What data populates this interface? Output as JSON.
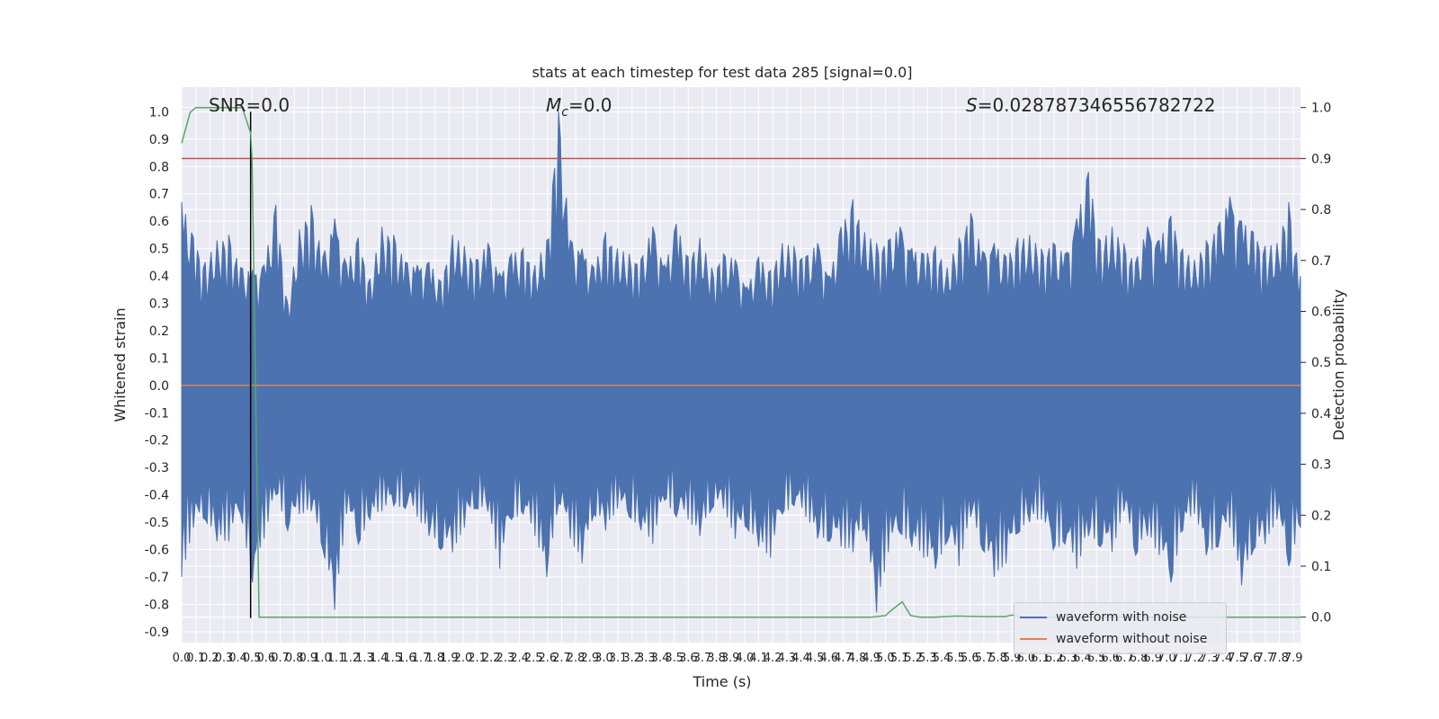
{
  "chart_data": {
    "type": "line",
    "title": "stats at each timestep for test data 285 [signal=0.0]",
    "xlabel": "Time (s)",
    "ylabel": "Whitened strain",
    "y2label": "Detection probability",
    "xlim": [
      0.0,
      7.95
    ],
    "ylim": [
      -0.94,
      1.09
    ],
    "y2lim": [
      -0.05,
      1.04
    ],
    "x_ticks": [
      0.0,
      0.1,
      0.2,
      0.3,
      0.4,
      0.5,
      0.6,
      0.7,
      0.8,
      0.9,
      1.0,
      1.1,
      1.2,
      1.3,
      1.4,
      1.5,
      1.6,
      1.7,
      1.8,
      1.9,
      2.0,
      2.1,
      2.2,
      2.3,
      2.4,
      2.5,
      2.6,
      2.7,
      2.8,
      2.9,
      3.0,
      3.1,
      3.2,
      3.3,
      3.4,
      3.5,
      3.6,
      3.7,
      3.8,
      3.9,
      4.0,
      4.1,
      4.2,
      4.3,
      4.4,
      4.5,
      4.6,
      4.7,
      4.8,
      4.9,
      5.0,
      5.1,
      5.2,
      5.3,
      5.4,
      5.5,
      5.6,
      5.7,
      5.8,
      5.9,
      6.0,
      6.1,
      6.2,
      6.3,
      6.4,
      6.5,
      6.6,
      6.7,
      6.8,
      6.9,
      7.0,
      7.1,
      7.2,
      7.3,
      7.4,
      7.5,
      7.6,
      7.7,
      7.8,
      7.9
    ],
    "y_ticks": [
      "1.0",
      "0.9",
      "0.8",
      "0.7",
      "0.6",
      "0.5",
      "0.4",
      "0.3",
      "0.2",
      "0.1",
      "0.0",
      "-0.1",
      "-0.2",
      "-0.3",
      "-0.4",
      "-0.5",
      "-0.6",
      "-0.7",
      "-0.8",
      "-0.9"
    ],
    "y2_ticks": [
      "1.0",
      "0.9",
      "0.8",
      "0.7",
      "0.6",
      "0.5",
      "0.4",
      "0.3",
      "0.2",
      "0.1",
      "0.0"
    ],
    "annotations": {
      "snr": "SNR=0.0",
      "mc": "M_c=0.0",
      "s": "S=0.028787346556782722"
    },
    "series": [
      {
        "name": "waveform with noise",
        "color": "#4c72b0",
        "envelope": {
          "x_start": 0.0,
          "x_end": 7.95,
          "max": [
            0.67,
            0.54,
            0.45,
            0.53,
            0.55,
            0.43,
            0.42,
            0.44,
            0.66,
            0.3,
            0.57,
            0.66,
            0.47,
            0.61,
            0.44,
            0.54,
            0.39,
            0.58,
            0.55,
            0.45,
            0.44,
            0.45,
            0.38,
            0.55,
            0.51,
            0.46,
            0.52,
            0.41,
            0.48,
            0.5,
            0.44,
            0.53,
            1.0,
            0.53,
            0.5,
            0.43,
            0.56,
            0.5,
            0.48,
            0.46,
            0.58,
            0.44,
            0.59,
            0.47,
            0.54,
            0.43,
            0.48,
            0.46,
            0.36,
            0.47,
            0.42,
            0.52,
            0.51,
            0.47,
            0.52,
            0.4,
            0.58,
            0.68,
            0.56,
            0.52,
            0.53,
            0.58,
            0.5,
            0.48,
            0.51,
            0.43,
            0.54,
            0.63,
            0.49,
            0.52,
            0.47,
            0.54,
            0.55,
            0.5,
            0.52,
            0.48,
            0.61,
            0.78,
            0.53,
            0.58,
            0.52,
            0.45,
            0.58,
            0.53,
            0.62,
            0.5,
            0.46,
            0.53,
            0.58,
            0.69,
            0.6,
            0.56,
            0.51,
            0.52,
            0.67,
            0.4
          ],
          "min": [
            -0.7,
            -0.52,
            -0.49,
            -0.57,
            -0.57,
            -0.47,
            -0.72,
            -0.56,
            -0.4,
            -0.53,
            -0.47,
            -0.46,
            -0.6,
            -0.82,
            -0.47,
            -0.58,
            -0.49,
            -0.46,
            -0.44,
            -0.45,
            -0.48,
            -0.55,
            -0.6,
            -0.61,
            -0.52,
            -0.45,
            -0.46,
            -0.67,
            -0.49,
            -0.47,
            -0.55,
            -0.7,
            -0.43,
            -0.56,
            -0.65,
            -0.47,
            -0.53,
            -0.45,
            -0.48,
            -0.53,
            -0.58,
            -0.42,
            -0.48,
            -0.49,
            -0.55,
            -0.45,
            -0.45,
            -0.56,
            -0.52,
            -0.59,
            -0.63,
            -0.47,
            -0.44,
            -0.48,
            -0.56,
            -0.57,
            -0.59,
            -0.61,
            -0.52,
            -0.83,
            -0.61,
            -0.54,
            -0.59,
            -0.63,
            -0.67,
            -0.57,
            -0.66,
            -0.48,
            -0.6,
            -0.7,
            -0.65,
            -0.54,
            -0.5,
            -0.49,
            -0.6,
            -0.58,
            -0.67,
            -0.55,
            -0.59,
            -0.61,
            -0.46,
            -0.62,
            -0.55,
            -0.62,
            -0.72,
            -0.53,
            -0.47,
            -0.62,
            -0.59,
            -0.52,
            -0.73,
            -0.6,
            -0.58,
            -0.49,
            -0.66,
            -0.52
          ]
        }
      },
      {
        "name": "waveform without noise",
        "color": "#dd8452",
        "x": [
          0.0,
          7.95
        ],
        "y": [
          0.0,
          0.0
        ]
      },
      {
        "axis": "right",
        "color": "#55a868",
        "x": [
          0.0,
          0.06,
          0.1,
          0.2,
          0.3,
          0.4,
          0.43,
          0.49,
          0.5,
          0.55,
          0.6,
          1.0,
          2.0,
          3.0,
          4.0,
          4.9,
          5.0,
          5.05,
          5.12,
          5.18,
          5.25,
          5.35,
          5.5,
          5.7,
          5.85,
          5.9,
          6.0,
          6.2,
          6.5,
          7.0,
          7.5,
          7.95
        ],
        "y": [
          0.93,
          0.99,
          1.0,
          1.0,
          1.0,
          1.0,
          1.0,
          0.95,
          0.9,
          0.0,
          0.0,
          0.0,
          0.0,
          0.0,
          0.0,
          0.0,
          0.003,
          0.015,
          0.03,
          0.003,
          0.0,
          0.0,
          0.002,
          0.001,
          0.001,
          0.004,
          0.0,
          0.0,
          0.0,
          0.0,
          0.0,
          0.0
        ]
      }
    ],
    "threshold": {
      "axis": "right",
      "value": 0.9,
      "color": "#c44e52"
    },
    "marker_line": {
      "x": 0.49,
      "y": [
        1.0,
        -0.85
      ],
      "color": "#000000"
    },
    "grid": true,
    "legend": "lower-right"
  }
}
